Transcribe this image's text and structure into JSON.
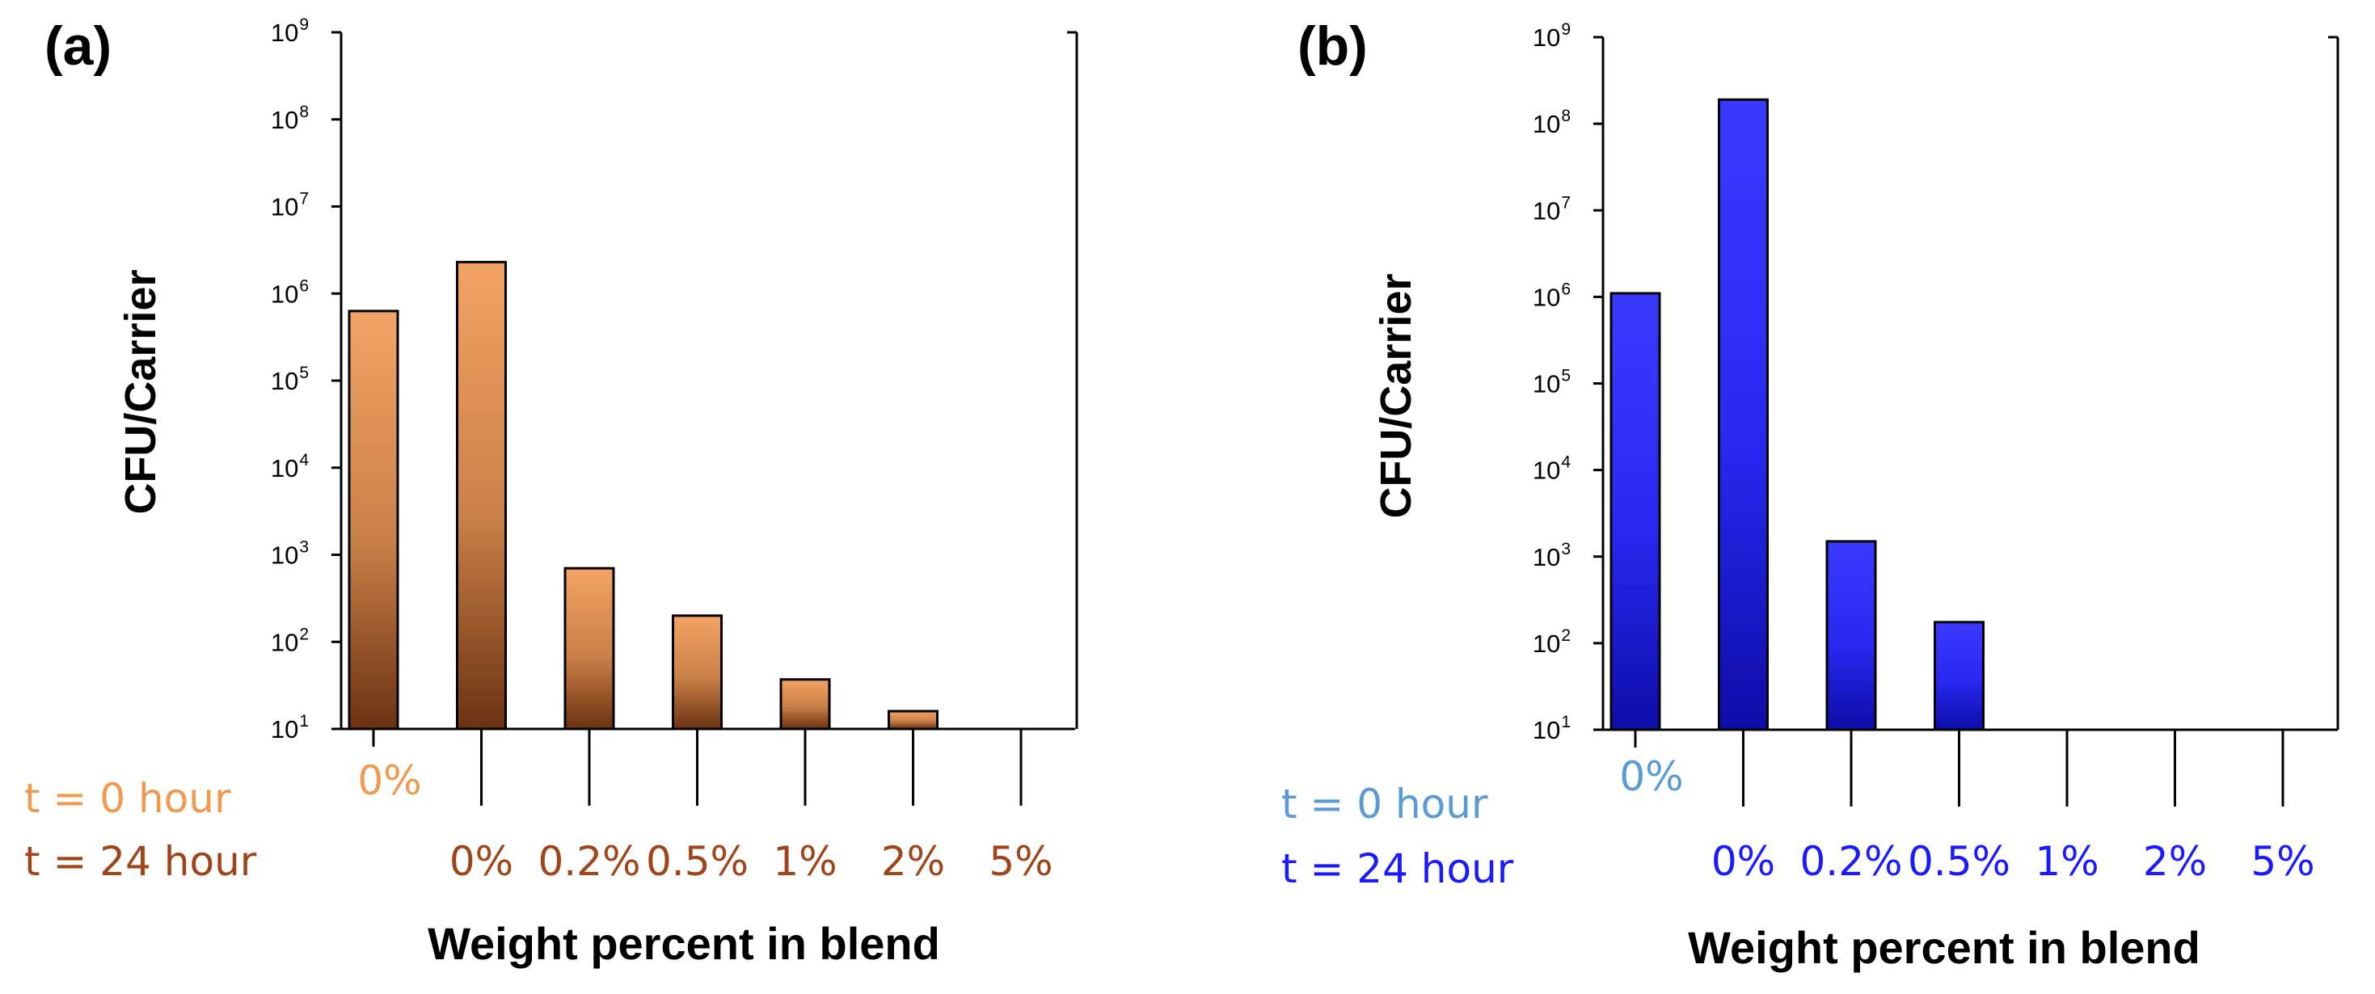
{
  "chart_data": [
    {
      "type": "bar",
      "panel_label": "(a)",
      "title": "",
      "xlabel": "Weight percent in blend",
      "ylabel": "CFU/Carrier",
      "yscale": "log",
      "ylim": [
        10,
        1000000000
      ],
      "y_tick_base": "10",
      "y_tick_exponents": [
        "1",
        "2",
        "3",
        "4",
        "5",
        "6",
        "7",
        "8",
        "9"
      ],
      "categories": [
        "0%",
        "0%",
        "0.2%",
        "0.5%",
        "1%",
        "2%",
        "5%"
      ],
      "category_groups": [
        "t = 0 hour",
        "t = 24 hour",
        "t = 24 hour",
        "t = 24 hour",
        "t = 24 hour",
        "t = 24 hour",
        "t = 24 hour"
      ],
      "values": [
        630000,
        2300000,
        700,
        200,
        37,
        16,
        10
      ],
      "legend": [
        {
          "label": "t = 0 hour",
          "color": "#f09a50"
        },
        {
          "label": "t = 24 hour",
          "color": "#a0441a"
        }
      ],
      "bar_colors": {
        "top": "#f3a365",
        "mid": "#c98047",
        "bottom": "#6b3212"
      },
      "grid": false
    },
    {
      "type": "bar",
      "panel_label": "(b)",
      "title": "",
      "xlabel": "Weight percent in blend",
      "ylabel": "CFU/Carrier",
      "yscale": "log",
      "ylim": [
        10,
        1000000000
      ],
      "y_tick_base": "10",
      "y_tick_exponents": [
        "1",
        "2",
        "3",
        "4",
        "5",
        "6",
        "7",
        "8",
        "9"
      ],
      "categories": [
        "0%",
        "0%",
        "0.2%",
        "0.5%",
        "1%",
        "2%",
        "5%"
      ],
      "category_groups": [
        "t = 0 hour",
        "t = 24 hour",
        "t = 24 hour",
        "t = 24 hour",
        "t = 24 hour",
        "t = 24 hour",
        "t = 24 hour"
      ],
      "values": [
        1100000,
        190000000,
        1500,
        175,
        10,
        10,
        10
      ],
      "legend": [
        {
          "label": "t = 0 hour",
          "color": "#5b9bd5"
        },
        {
          "label": "t = 24 hour",
          "color": "#1a1aff"
        }
      ],
      "bar_colors": {
        "top": "#3a3aff",
        "mid": "#2828f0",
        "bottom": "#0d0da8"
      },
      "grid": false
    }
  ]
}
